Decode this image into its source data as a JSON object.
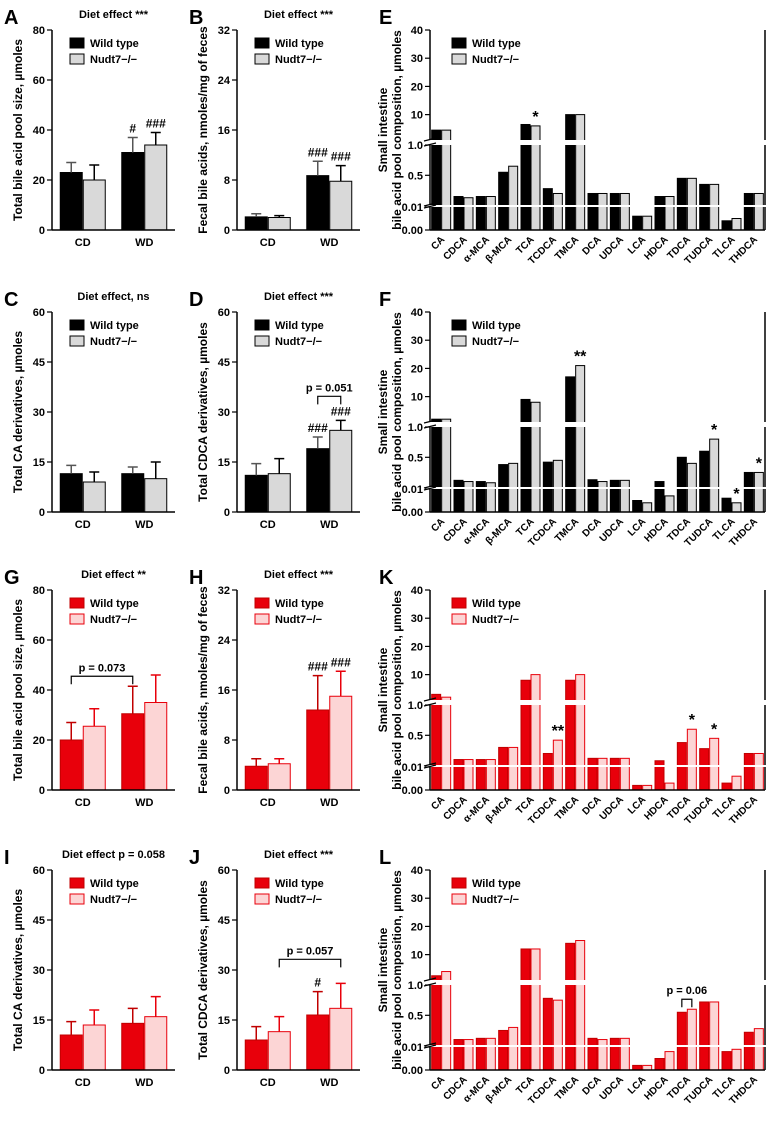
{
  "chart_data": [
    {
      "type": "bar",
      "panel": "A",
      "title": "Diet effect ***",
      "ylabel": [
        "Total bile acid pool size, µmoles"
      ],
      "categories": [
        "CD",
        "WD"
      ],
      "ylim": [
        0,
        80
      ],
      "yticks": [
        0,
        20,
        40,
        60,
        80
      ],
      "series": [
        {
          "name": "Wild type",
          "color": "#000000",
          "edgecolor": "#000000",
          "values": [
            23,
            31
          ],
          "errors": [
            4,
            6
          ]
        },
        {
          "name": "Nudt7−/−",
          "color": "#d9d9d9",
          "edgecolor": "#000000",
          "values": [
            20,
            34
          ],
          "errors": [
            6,
            5
          ]
        }
      ],
      "annotations": [
        {
          "text": "#",
          "category": 1,
          "series": 0
        },
        {
          "text": "###",
          "category": 1,
          "series": 1
        }
      ]
    },
    {
      "type": "bar",
      "panel": "B",
      "title": "Diet effect ***",
      "ylabel": [
        "Fecal bile acids, nmoles/mg of feces"
      ],
      "categories": [
        "CD",
        "WD"
      ],
      "ylim": [
        0,
        32
      ],
      "yticks": [
        0,
        8,
        16,
        24,
        32
      ],
      "series": [
        {
          "name": "Wild type",
          "color": "#000000",
          "edgecolor": "#000000",
          "values": [
            2.1,
            8.7
          ],
          "errors": [
            0.5,
            2.3
          ]
        },
        {
          "name": "Nudt7−/−",
          "color": "#d9d9d9",
          "edgecolor": "#000000",
          "values": [
            2,
            7.8
          ],
          "errors": [
            0.3,
            2.5
          ]
        }
      ],
      "annotations": [
        {
          "text": "###",
          "category": 1,
          "series": 0
        },
        {
          "text": "###",
          "category": 1,
          "series": 1
        }
      ]
    },
    {
      "type": "bar",
      "panel": "E",
      "ylabel": [
        "Small intestine",
        "bile acid pool composition, µmoles"
      ],
      "categories": [
        "CA",
        "CDCA",
        "α-MCA",
        "β-MCA",
        "TCA",
        "TCDCA",
        "TMCA",
        "DCA",
        "UDCA",
        "LCA",
        "HDCA",
        "TDCA",
        "TUDCA",
        "TLCA",
        "THDCA"
      ],
      "ysegments": [
        [
          0,
          0.01
        ],
        [
          0.01,
          1
        ],
        [
          1,
          40
        ]
      ],
      "yticks": [
        {
          "value": 0,
          "label": "0.00"
        },
        0.01,
        0.5,
        {
          "value": 1,
          "label": "1.0"
        },
        10,
        20,
        30,
        40
      ],
      "series": [
        {
          "name": "Wild type",
          "color": "#000000",
          "edgecolor": "#000000",
          "values": [
            4.5,
            0.15,
            0.15,
            0.55,
            6.5,
            0.28,
            10,
            0.2,
            0.2,
            0.006,
            0.15,
            0.45,
            0.35,
            0.004,
            0.2
          ]
        },
        {
          "name": "Nudt7−/−",
          "color": "#d9d9d9",
          "edgecolor": "#000000",
          "values": [
            4.5,
            0.13,
            0.15,
            0.65,
            6,
            0.2,
            10,
            0.2,
            0.2,
            0.006,
            0.15,
            0.45,
            0.35,
            0.005,
            0.2
          ]
        }
      ],
      "annotations": [
        {
          "text": "*",
          "category": 4,
          "series": 1
        }
      ]
    },
    {
      "type": "bar",
      "panel": "C",
      "title": "Diet effect, ns",
      "ylabel": [
        "Total CA derivatives, µmoles"
      ],
      "categories": [
        "CD",
        "WD"
      ],
      "ylim": [
        0,
        60
      ],
      "yticks": [
        0,
        15,
        30,
        45,
        60
      ],
      "series": [
        {
          "name": "Wild type",
          "color": "#000000",
          "edgecolor": "#000000",
          "values": [
            11.5,
            11.5
          ],
          "errors": [
            2.5,
            2
          ]
        },
        {
          "name": "Nudt7−/−",
          "color": "#d9d9d9",
          "edgecolor": "#000000",
          "values": [
            9,
            10
          ],
          "errors": [
            3,
            5
          ]
        }
      ]
    },
    {
      "type": "bar",
      "panel": "D",
      "title": "Diet effect ***",
      "ylabel": [
        "Total CDCA derivatives, µmoles"
      ],
      "categories": [
        "CD",
        "WD"
      ],
      "ylim": [
        0,
        60
      ],
      "yticks": [
        0,
        15,
        30,
        45,
        60
      ],
      "series": [
        {
          "name": "Wild type",
          "color": "#000000",
          "edgecolor": "#000000",
          "values": [
            11,
            19
          ],
          "errors": [
            3.5,
            3.5
          ]
        },
        {
          "name": "Nudt7−/−",
          "color": "#d9d9d9",
          "edgecolor": "#000000",
          "values": [
            11.5,
            24.5
          ],
          "errors": [
            4.5,
            3
          ]
        }
      ],
      "annotations": [
        {
          "text": "###",
          "category": 1,
          "series": 0
        },
        {
          "text": "###",
          "category": 1,
          "series": 1
        }
      ],
      "brackets": [
        {
          "text": "p = 0.051",
          "from": {
            "category": 1,
            "series": 0
          },
          "to": {
            "category": 1,
            "series": 1
          }
        }
      ]
    },
    {
      "type": "bar",
      "panel": "F",
      "ylabel": [
        "Small intestine",
        "bile acid pool composition, µmoles"
      ],
      "categories": [
        "CA",
        "CDCA",
        "α-MCA",
        "β-MCA",
        "TCA",
        "TCDCA",
        "TMCA",
        "DCA",
        "UDCA",
        "LCA",
        "HDCA",
        "TDCA",
        "TUDCA",
        "TLCA",
        "THDCA"
      ],
      "ysegments": [
        [
          0,
          0.01
        ],
        [
          0.01,
          1
        ],
        [
          1,
          40
        ]
      ],
      "yticks": [
        {
          "value": 0,
          "label": "0.00"
        },
        0.01,
        0.5,
        {
          "value": 1,
          "label": "1.0"
        },
        10,
        20,
        30,
        40
      ],
      "series": [
        {
          "name": "Wild type",
          "color": "#000000",
          "edgecolor": "#000000",
          "values": [
            2,
            0.12,
            0.1,
            0.38,
            9,
            0.42,
            17,
            0.13,
            0.12,
            0.005,
            0.1,
            0.5,
            0.6,
            0.006,
            0.25
          ]
        },
        {
          "name": "Nudt7−/−",
          "color": "#d9d9d9",
          "edgecolor": "#000000",
          "values": [
            2,
            0.1,
            0.08,
            0.4,
            8,
            0.45,
            21,
            0.1,
            0.12,
            0.004,
            0.007,
            0.4,
            0.8,
            0.004,
            0.25
          ]
        }
      ],
      "annotations": [
        {
          "text": "**",
          "category": 6,
          "series": 1
        },
        {
          "text": "*",
          "category": 12,
          "series": 1
        },
        {
          "text": "*",
          "category": 13,
          "series": 1
        },
        {
          "text": "*",
          "category": 14,
          "series": 1
        }
      ]
    },
    {
      "type": "bar",
      "panel": "G",
      "title": "Diet effect **",
      "ylabel": [
        "Total bile acid pool size, µmoles"
      ],
      "categories": [
        "CD",
        "WD"
      ],
      "ylim": [
        0,
        80
      ],
      "yticks": [
        0,
        20,
        40,
        60,
        80
      ],
      "series": [
        {
          "name": "Wild type",
          "color": "#e8000b",
          "edgecolor": "#c00000",
          "values": [
            20,
            30.5
          ],
          "errors": [
            7,
            11
          ]
        },
        {
          "name": "Nudt7−/−",
          "color": "#fcd5d5",
          "edgecolor": "#e8000b",
          "values": [
            25.5,
            35
          ],
          "errors": [
            7,
            11
          ]
        }
      ],
      "brackets": [
        {
          "text": "p = 0.073",
          "from": {
            "category": 0,
            "series": 0
          },
          "to": {
            "category": 1,
            "series": 0
          }
        }
      ]
    },
    {
      "type": "bar",
      "panel": "H",
      "title": "Diet effect ***",
      "ylabel": [
        "Fecal bile acids, nmoles/mg of feces"
      ],
      "categories": [
        "CD",
        "WD"
      ],
      "ylim": [
        0,
        32
      ],
      "yticks": [
        0,
        8,
        16,
        24,
        32
      ],
      "series": [
        {
          "name": "Wild type",
          "color": "#e8000b",
          "edgecolor": "#c00000",
          "values": [
            3.8,
            12.8
          ],
          "errors": [
            1.2,
            5.5
          ]
        },
        {
          "name": "Nudt7−/−",
          "color": "#fcd5d5",
          "edgecolor": "#e8000b",
          "values": [
            4.2,
            15
          ],
          "errors": [
            0.8,
            4
          ]
        }
      ],
      "annotations": [
        {
          "text": "###",
          "category": 1,
          "series": 0
        },
        {
          "text": "###",
          "category": 1,
          "series": 1
        }
      ]
    },
    {
      "type": "bar",
      "panel": "K",
      "ylabel": [
        "Small intestine",
        "bile acid pool composition, µmoles"
      ],
      "categories": [
        "CA",
        "CDCA",
        "α-MCA",
        "β-MCA",
        "TCA",
        "TCDCA",
        "TMCA",
        "DCA",
        "UDCA",
        "LCA",
        "HDCA",
        "TDCA",
        "TUDCA",
        "TLCA",
        "THDCA"
      ],
      "ysegments": [
        [
          0,
          0.01
        ],
        [
          0.01,
          1
        ],
        [
          1,
          40
        ]
      ],
      "yticks": [
        {
          "value": 0,
          "label": "0.00"
        },
        0.01,
        0.5,
        {
          "value": 1,
          "label": "1.0"
        },
        10,
        20,
        30,
        40
      ],
      "series": [
        {
          "name": "Wild type",
          "color": "#e8000b",
          "edgecolor": "#c00000",
          "values": [
            3,
            0.1,
            0.1,
            0.3,
            8,
            0.2,
            8,
            0.12,
            0.12,
            0.002,
            0.08,
            0.38,
            0.28,
            0.003,
            0.2
          ]
        },
        {
          "name": "Nudt7−/−",
          "color": "#fcd5d5",
          "edgecolor": "#e8000b",
          "values": [
            2,
            0.1,
            0.1,
            0.3,
            10,
            0.42,
            10,
            0.12,
            0.12,
            0.002,
            0.003,
            0.6,
            0.45,
            0.006,
            0.2
          ]
        }
      ],
      "annotations": [
        {
          "text": "**",
          "category": 5,
          "series": 1
        },
        {
          "text": "*",
          "category": 11,
          "series": 1
        },
        {
          "text": "*",
          "category": 12,
          "series": 1
        }
      ]
    },
    {
      "type": "bar",
      "panel": "I",
      "title": "Diet effect  p = 0.058",
      "ylabel": [
        "Total CA derivatives, µmoles"
      ],
      "categories": [
        "CD",
        "WD"
      ],
      "ylim": [
        0,
        60
      ],
      "yticks": [
        0,
        15,
        30,
        45,
        60
      ],
      "series": [
        {
          "name": "Wild type",
          "color": "#e8000b",
          "edgecolor": "#c00000",
          "values": [
            10.5,
            14
          ],
          "errors": [
            4,
            4.5
          ]
        },
        {
          "name": "Nudt7−/−",
          "color": "#fcd5d5",
          "edgecolor": "#e8000b",
          "values": [
            13.5,
            16
          ],
          "errors": [
            4.5,
            6
          ]
        }
      ]
    },
    {
      "type": "bar",
      "panel": "J",
      "title": "Diet effect ***",
      "ylabel": [
        "Total CDCA derivatives, µmoles"
      ],
      "categories": [
        "CD",
        "WD"
      ],
      "ylim": [
        0,
        60
      ],
      "yticks": [
        0,
        15,
        30,
        45,
        60
      ],
      "series": [
        {
          "name": "Wild type",
          "color": "#e8000b",
          "edgecolor": "#c00000",
          "values": [
            9,
            16.5
          ],
          "errors": [
            4,
            7
          ]
        },
        {
          "name": "Nudt7−/−",
          "color": "#fcd5d5",
          "edgecolor": "#e8000b",
          "values": [
            11.5,
            18.5
          ],
          "errors": [
            4.5,
            7.5
          ]
        }
      ],
      "annotations": [
        {
          "text": "#",
          "category": 1,
          "series": 0
        }
      ],
      "brackets": [
        {
          "text": "p = 0.057",
          "from": {
            "category": 0,
            "series": 1
          },
          "to": {
            "category": 1,
            "series": 1
          }
        }
      ]
    },
    {
      "type": "bar",
      "panel": "L",
      "ylabel": [
        "Small intestine",
        "bile acid pool composition, µmoles"
      ],
      "categories": [
        "CA",
        "CDCA",
        "α-MCA",
        "β-MCA",
        "TCA",
        "TCDCA",
        "TMCA",
        "DCA",
        "UDCA",
        "LCA",
        "HDCA",
        "TDCA",
        "TUDCA",
        "TLCA",
        "THDCA"
      ],
      "ysegments": [
        [
          0,
          0.01
        ],
        [
          0.01,
          1
        ],
        [
          1,
          40
        ]
      ],
      "yticks": [
        {
          "value": 0,
          "label": "0.00"
        },
        0.01,
        0.5,
        {
          "value": 1,
          "label": "1.0"
        },
        10,
        20,
        30,
        40
      ],
      "series": [
        {
          "name": "Wild type",
          "color": "#e8000b",
          "edgecolor": "#c00000",
          "values": [
            2.5,
            0.1,
            0.12,
            0.25,
            12,
            0.78,
            14,
            0.12,
            0.12,
            0.002,
            0.005,
            0.55,
            0.72,
            0.008,
            0.22
          ]
        },
        {
          "name": "Nudt7−/−",
          "color": "#fcd5d5",
          "edgecolor": "#e8000b",
          "values": [
            4,
            0.1,
            0.12,
            0.3,
            12,
            0.75,
            15,
            0.1,
            0.12,
            0.002,
            0.008,
            0.6,
            0.72,
            0.009,
            0.28
          ]
        }
      ],
      "brackets": [
        {
          "text": "p = 0.06",
          "from": {
            "category": 11,
            "series": 0
          },
          "to": {
            "category": 11,
            "series": 1
          }
        }
      ]
    }
  ]
}
